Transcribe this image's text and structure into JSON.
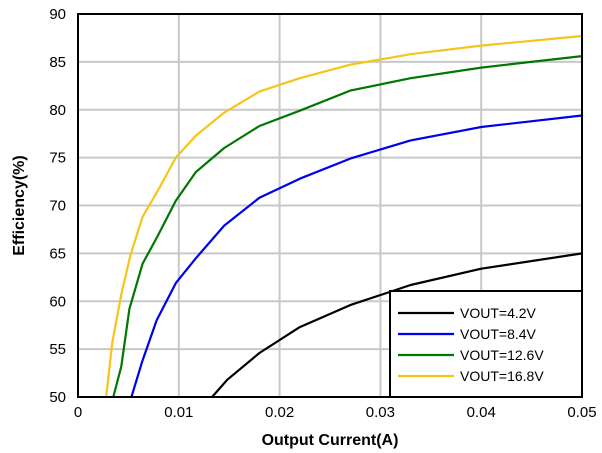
{
  "chart_data": {
    "type": "line",
    "xlabel": "Output Current(A)",
    "ylabel": "Efficiency(%)",
    "xlim": [
      0,
      0.05
    ],
    "ylim": [
      50,
      90
    ],
    "xticks": [
      0,
      0.01,
      0.02,
      0.03,
      0.04,
      0.05
    ],
    "xtick_labels": [
      "0",
      "0.01",
      "0.02",
      "0.03",
      "0.04",
      "0.05"
    ],
    "yticks": [
      50,
      55,
      60,
      65,
      70,
      75,
      80,
      85,
      90
    ],
    "ytick_labels": [
      "50",
      "55",
      "60",
      "65",
      "70",
      "75",
      "80",
      "85",
      "90"
    ],
    "grid": true,
    "legend_position": "bottom-right",
    "series": [
      {
        "name": "VOUT=4.2V",
        "color": "#000000",
        "x": [
          0.0133,
          0.0148,
          0.018,
          0.022,
          0.027,
          0.033,
          0.04,
          0.05
        ],
        "y": [
          50,
          51.8,
          54.6,
          57.3,
          59.6,
          61.7,
          63.4,
          65
        ]
      },
      {
        "name": "VOUT=8.4V",
        "color": "#0000ee",
        "x": [
          0.0053,
          0.0064,
          0.0078,
          0.0097,
          0.0117,
          0.0145,
          0.018,
          0.022,
          0.027,
          0.033,
          0.04,
          0.05
        ],
        "y": [
          50,
          53.8,
          58,
          61.9,
          64.5,
          67.9,
          70.8,
          72.8,
          74.9,
          76.8,
          78.2,
          79.4
        ]
      },
      {
        "name": "VOUT=12.6V",
        "color": "#007700",
        "x": [
          0.0035,
          0.0043,
          0.0051,
          0.0064,
          0.0079,
          0.0097,
          0.0117,
          0.0145,
          0.018,
          0.022,
          0.027,
          0.033,
          0.04,
          0.05
        ],
        "y": [
          50,
          53.2,
          59.2,
          63.9,
          66.8,
          70.5,
          73.5,
          76,
          78.3,
          79.9,
          82,
          83.3,
          84.4,
          85.6
        ]
      },
      {
        "name": "VOUT=16.8V",
        "color": "#f5c518",
        "x": [
          0.0028,
          0.0034,
          0.0043,
          0.0052,
          0.0064,
          0.0079,
          0.0097,
          0.0117,
          0.0145,
          0.018,
          0.022,
          0.027,
          0.033,
          0.04,
          0.05
        ],
        "y": [
          50,
          55.7,
          60.7,
          64.8,
          68.8,
          71.5,
          75,
          77.3,
          79.7,
          81.9,
          83.3,
          84.7,
          85.8,
          86.7,
          87.7
        ]
      }
    ]
  }
}
